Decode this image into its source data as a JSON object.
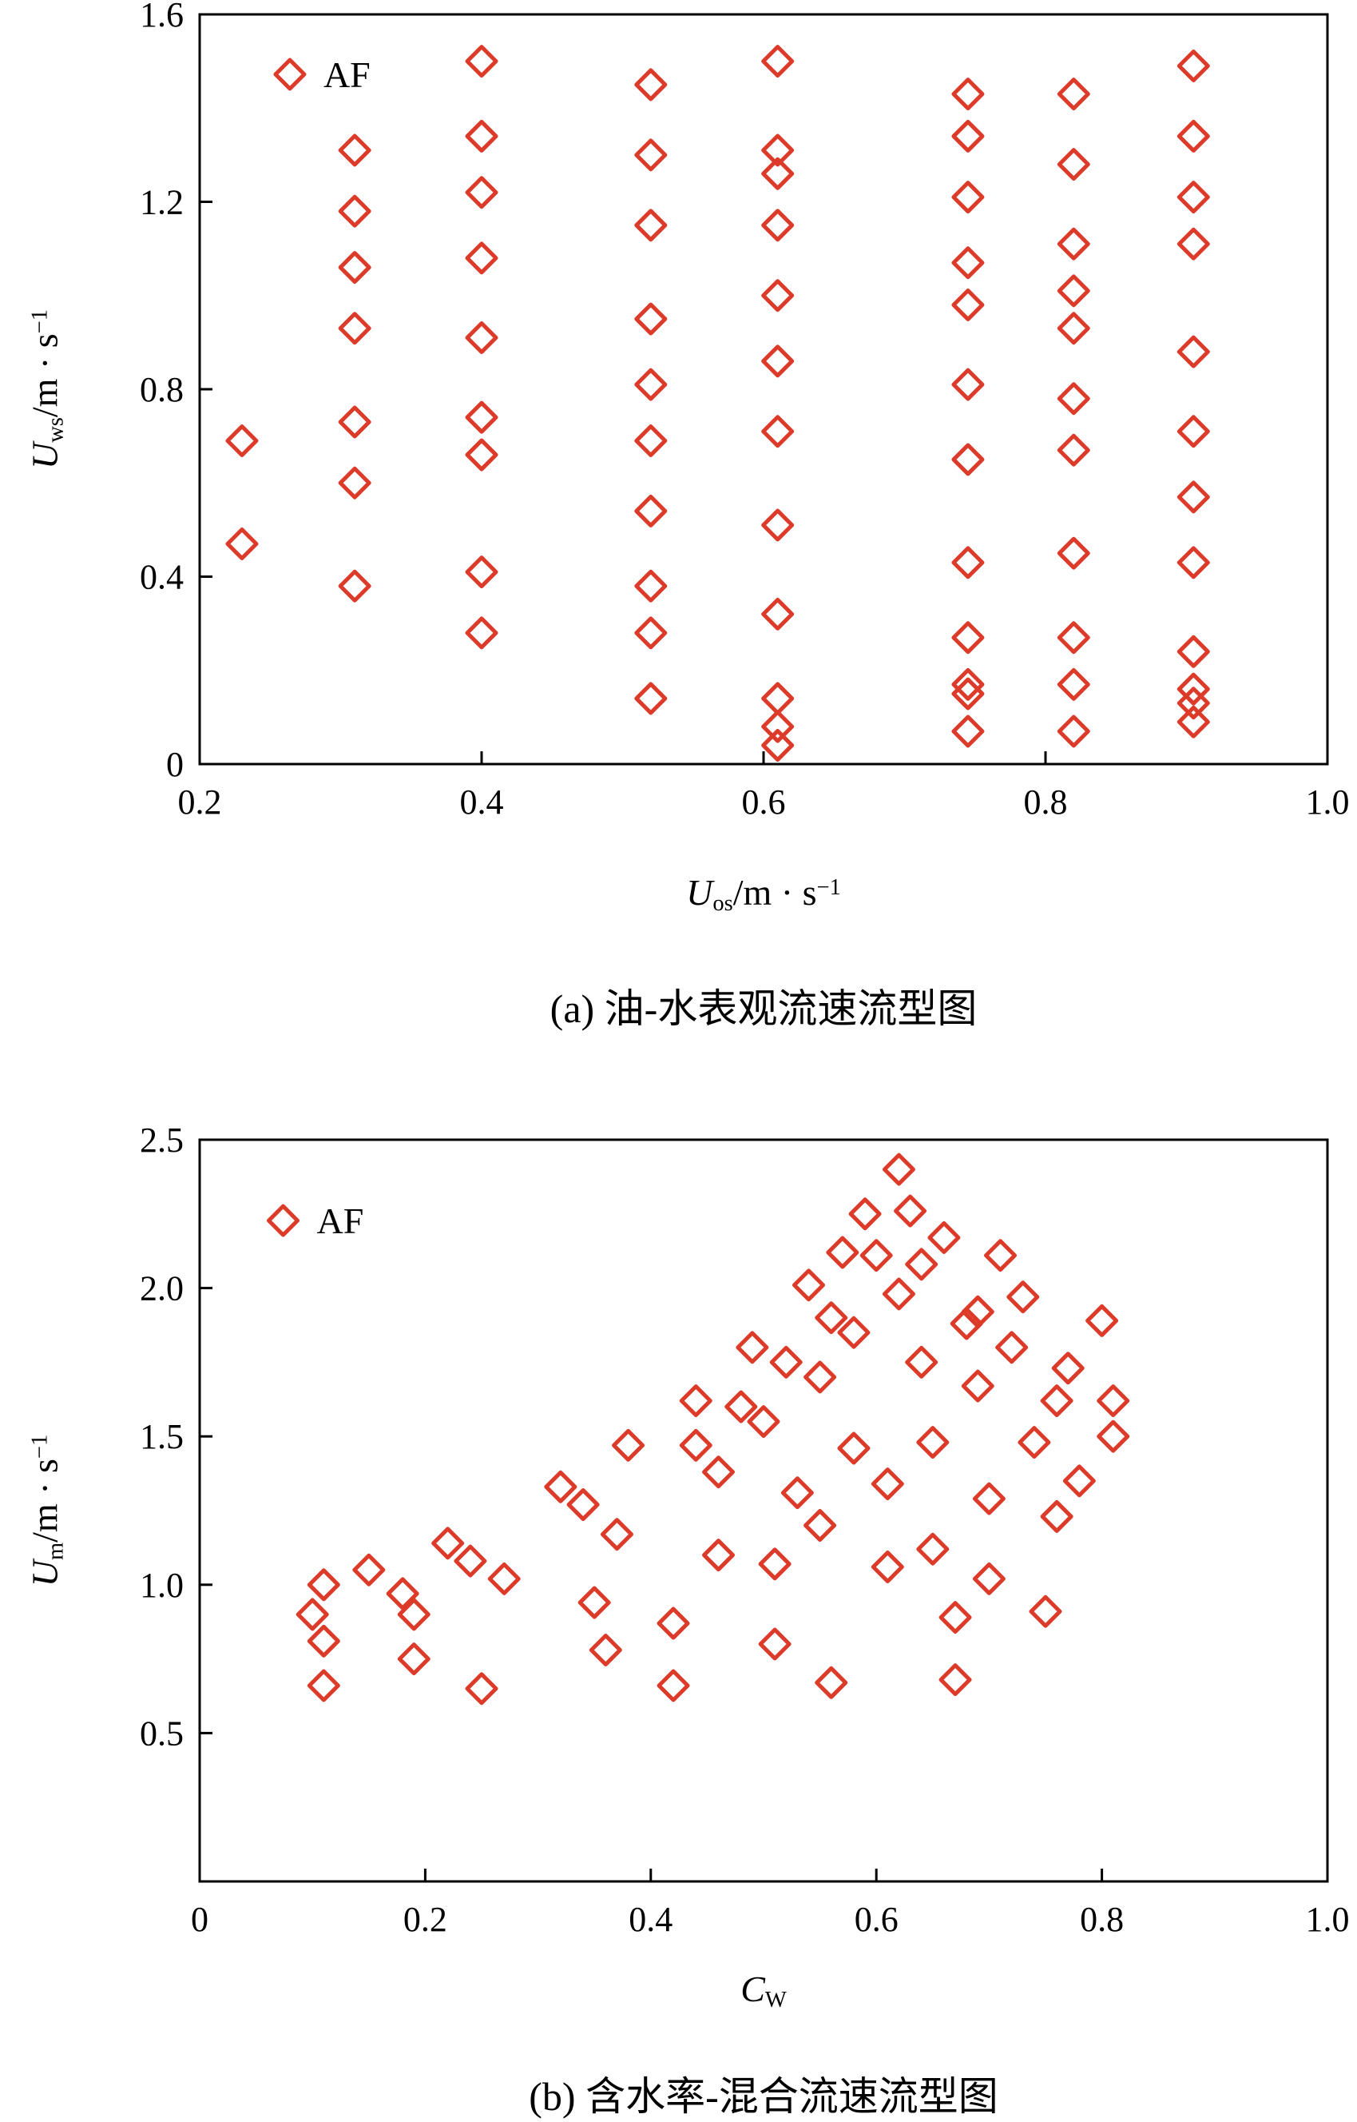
{
  "page": {
    "background": "#ffffff",
    "marker_color": "#dd3b2a"
  },
  "chart_data": [
    {
      "type": "scatter",
      "caption": "(a) 油-水表观流速流型图",
      "xlabel": {
        "var": "U",
        "sub": "os",
        "unit": "/m · s",
        "sup": "−1"
      },
      "ylabel": {
        "var": "U",
        "sub": "ws",
        "unit": "/m · s",
        "sup": "−1"
      },
      "xlim": [
        0.2,
        1.0
      ],
      "ylim": [
        0,
        1.6
      ],
      "xticks": [
        {
          "v": 0.2,
          "t": "0.2"
        },
        {
          "v": 0.4,
          "t": "0.4"
        },
        {
          "v": 0.6,
          "t": "0.6"
        },
        {
          "v": 0.8,
          "t": "0.8"
        },
        {
          "v": 1.0,
          "t": "1.0"
        }
      ],
      "yticks": [
        {
          "v": 0,
          "t": "0"
        },
        {
          "v": 0.4,
          "t": "0.4"
        },
        {
          "v": 0.8,
          "t": "0.8"
        },
        {
          "v": 1.2,
          "t": "1.2"
        },
        {
          "v": 1.6,
          "t": "1.6"
        }
      ],
      "legend": {
        "label": "AF",
        "fx": 0.08,
        "fy": 0.08
      },
      "marker": {
        "shape": "diamond",
        "color": "#dd3b2a",
        "size": 18,
        "stroke": 5
      },
      "grid": false,
      "points": [
        [
          0.23,
          0.69
        ],
        [
          0.23,
          0.47
        ],
        [
          0.31,
          1.31
        ],
        [
          0.31,
          1.18
        ],
        [
          0.31,
          1.06
        ],
        [
          0.31,
          0.93
        ],
        [
          0.31,
          0.73
        ],
        [
          0.31,
          0.6
        ],
        [
          0.31,
          0.38
        ],
        [
          0.4,
          1.5
        ],
        [
          0.4,
          1.34
        ],
        [
          0.4,
          1.22
        ],
        [
          0.4,
          1.08
        ],
        [
          0.4,
          0.91
        ],
        [
          0.4,
          0.74
        ],
        [
          0.4,
          0.66
        ],
        [
          0.4,
          0.41
        ],
        [
          0.4,
          0.28
        ],
        [
          0.52,
          1.45
        ],
        [
          0.52,
          1.3
        ],
        [
          0.52,
          1.15
        ],
        [
          0.52,
          0.95
        ],
        [
          0.52,
          0.81
        ],
        [
          0.52,
          0.69
        ],
        [
          0.52,
          0.54
        ],
        [
          0.52,
          0.38
        ],
        [
          0.52,
          0.28
        ],
        [
          0.52,
          0.14
        ],
        [
          0.61,
          1.5
        ],
        [
          0.61,
          1.31
        ],
        [
          0.61,
          1.26
        ],
        [
          0.61,
          1.15
        ],
        [
          0.61,
          1.0
        ],
        [
          0.61,
          0.86
        ],
        [
          0.61,
          0.71
        ],
        [
          0.61,
          0.51
        ],
        [
          0.61,
          0.32
        ],
        [
          0.61,
          0.14
        ],
        [
          0.61,
          0.08
        ],
        [
          0.61,
          0.04
        ],
        [
          0.745,
          1.43
        ],
        [
          0.745,
          1.34
        ],
        [
          0.745,
          1.21
        ],
        [
          0.745,
          1.07
        ],
        [
          0.745,
          0.98
        ],
        [
          0.745,
          0.81
        ],
        [
          0.745,
          0.65
        ],
        [
          0.745,
          0.43
        ],
        [
          0.745,
          0.27
        ],
        [
          0.745,
          0.17
        ],
        [
          0.745,
          0.15
        ],
        [
          0.745,
          0.07
        ],
        [
          0.82,
          1.43
        ],
        [
          0.82,
          1.28
        ],
        [
          0.82,
          1.11
        ],
        [
          0.82,
          1.01
        ],
        [
          0.82,
          0.93
        ],
        [
          0.82,
          0.78
        ],
        [
          0.82,
          0.67
        ],
        [
          0.82,
          0.45
        ],
        [
          0.82,
          0.27
        ],
        [
          0.82,
          0.17
        ],
        [
          0.82,
          0.07
        ],
        [
          0.905,
          1.49
        ],
        [
          0.905,
          1.34
        ],
        [
          0.905,
          1.21
        ],
        [
          0.905,
          1.11
        ],
        [
          0.905,
          0.88
        ],
        [
          0.905,
          0.71
        ],
        [
          0.905,
          0.57
        ],
        [
          0.905,
          0.43
        ],
        [
          0.905,
          0.24
        ],
        [
          0.905,
          0.16
        ],
        [
          0.905,
          0.13
        ],
        [
          0.905,
          0.09
        ]
      ]
    },
    {
      "type": "scatter",
      "caption": "(b) 含水率-混合流速流型图",
      "xlabel": {
        "var": "C",
        "sub": "W",
        "unit": "",
        "sup": ""
      },
      "ylabel": {
        "var": "U",
        "sub": "m",
        "unit": "/m · s",
        "sup": "−1"
      },
      "xlim": [
        0,
        1.0
      ],
      "ylim": [
        0,
        2.5
      ],
      "xticks": [
        {
          "v": 0,
          "t": "0"
        },
        {
          "v": 0.2,
          "t": "0.2"
        },
        {
          "v": 0.4,
          "t": "0.4"
        },
        {
          "v": 0.6,
          "t": "0.6"
        },
        {
          "v": 0.8,
          "t": "0.8"
        },
        {
          "v": 1.0,
          "t": "1.0"
        }
      ],
      "yticks": [
        {
          "v": 0.5,
          "t": "0.5"
        },
        {
          "v": 1.0,
          "t": "1.0"
        },
        {
          "v": 1.5,
          "t": "1.5"
        },
        {
          "v": 2.0,
          "t": "2.0"
        },
        {
          "v": 2.5,
          "t": "2.5"
        }
      ],
      "legend": {
        "label": "AF",
        "fx": 0.074,
        "fy": 0.109
      },
      "marker": {
        "shape": "diamond",
        "color": "#dd3b2a",
        "size": 18,
        "stroke": 5
      },
      "grid": false,
      "points": [
        [
          0.1,
          0.9
        ],
        [
          0.11,
          1.0
        ],
        [
          0.11,
          0.81
        ],
        [
          0.11,
          0.66
        ],
        [
          0.15,
          1.05
        ],
        [
          0.18,
          0.97
        ],
        [
          0.19,
          0.9
        ],
        [
          0.19,
          0.75
        ],
        [
          0.22,
          1.14
        ],
        [
          0.24,
          1.08
        ],
        [
          0.25,
          0.65
        ],
        [
          0.27,
          1.02
        ],
        [
          0.32,
          1.33
        ],
        [
          0.34,
          1.27
        ],
        [
          0.35,
          0.94
        ],
        [
          0.36,
          0.78
        ],
        [
          0.37,
          1.17
        ],
        [
          0.38,
          1.47
        ],
        [
          0.42,
          0.87
        ],
        [
          0.42,
          0.66
        ],
        [
          0.44,
          1.62
        ],
        [
          0.44,
          1.47
        ],
        [
          0.46,
          1.1
        ],
        [
          0.46,
          1.38
        ],
        [
          0.48,
          1.6
        ],
        [
          0.49,
          1.8
        ],
        [
          0.5,
          1.55
        ],
        [
          0.51,
          1.07
        ],
        [
          0.51,
          0.8
        ],
        [
          0.52,
          1.75
        ],
        [
          0.53,
          1.31
        ],
        [
          0.54,
          2.01
        ],
        [
          0.55,
          1.7
        ],
        [
          0.55,
          1.2
        ],
        [
          0.56,
          0.67
        ],
        [
          0.56,
          1.9
        ],
        [
          0.57,
          2.12
        ],
        [
          0.58,
          1.85
        ],
        [
          0.58,
          1.46
        ],
        [
          0.59,
          2.25
        ],
        [
          0.6,
          2.11
        ],
        [
          0.61,
          1.34
        ],
        [
          0.61,
          1.06
        ],
        [
          0.62,
          2.4
        ],
        [
          0.62,
          1.98
        ],
        [
          0.63,
          2.26
        ],
        [
          0.64,
          2.08
        ],
        [
          0.64,
          1.75
        ],
        [
          0.65,
          1.48
        ],
        [
          0.65,
          1.12
        ],
        [
          0.66,
          2.17
        ],
        [
          0.67,
          0.89
        ],
        [
          0.67,
          0.68
        ],
        [
          0.68,
          1.88
        ],
        [
          0.69,
          1.92
        ],
        [
          0.69,
          1.67
        ],
        [
          0.7,
          1.29
        ],
        [
          0.7,
          1.02
        ],
        [
          0.71,
          2.11
        ],
        [
          0.72,
          1.8
        ],
        [
          0.73,
          1.97
        ],
        [
          0.74,
          1.48
        ],
        [
          0.75,
          0.91
        ],
        [
          0.76,
          1.23
        ],
        [
          0.76,
          1.62
        ],
        [
          0.77,
          1.73
        ],
        [
          0.78,
          1.35
        ],
        [
          0.8,
          1.89
        ],
        [
          0.81,
          1.62
        ],
        [
          0.81,
          1.5
        ]
      ]
    }
  ]
}
